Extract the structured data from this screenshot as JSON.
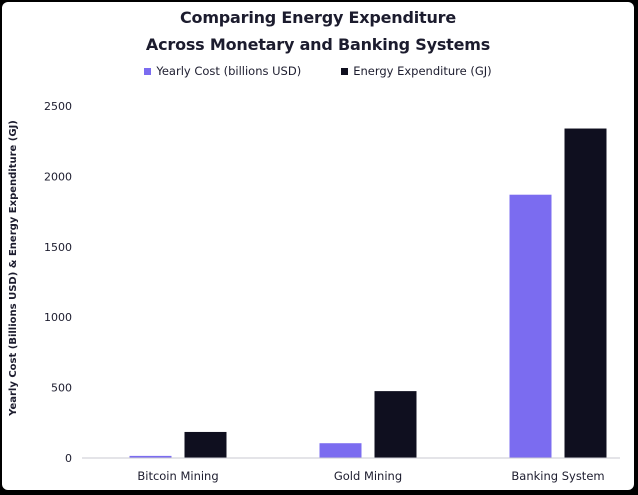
{
  "chart_data": {
    "type": "bar",
    "title_lines": [
      "Comparing Energy Expenditure",
      "Across Monetary and Banking Systems"
    ],
    "ylabel": "Yearly Cost (Billions USD) & Energy Expenditure (GJ)",
    "xlabel": "",
    "categories": [
      "Bitcoin Mining",
      "Gold Mining",
      "Banking System"
    ],
    "series": [
      {
        "name": "Yearly Cost (billions USD)",
        "color": "#7b6cf0",
        "values": [
          15,
          105,
          1870
        ]
      },
      {
        "name": "Energy Expenditure (GJ)",
        "color": "#0f0f1f",
        "values": [
          185,
          475,
          2340
        ]
      }
    ],
    "ylim": [
      0,
      2500
    ],
    "yticks": [
      "0",
      "500",
      "1000",
      "1500",
      "2000",
      "2500"
    ],
    "grid": false,
    "legend_position": "top-center"
  }
}
